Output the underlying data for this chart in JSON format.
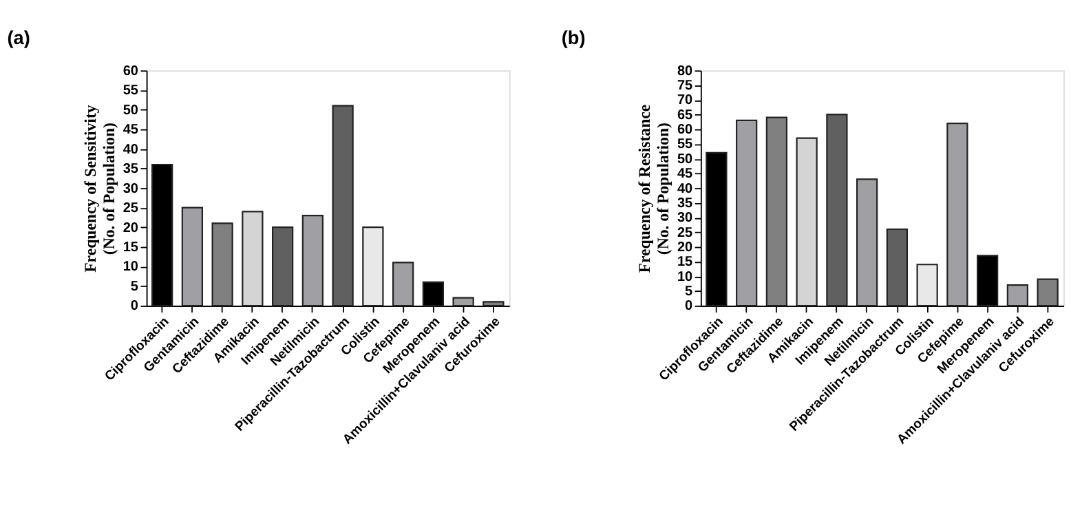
{
  "chart_data": [
    {
      "type": "bar",
      "title": "(a)",
      "ylabel": "Frequency of Sensitivity\n(No. of Population)",
      "categories": [
        "Ciprofloxacin",
        "Gentamicin",
        "Ceftazidime",
        "Amikacin",
        "Imipenem",
        "Netilmicin",
        "Piperacillin-Tazobactrum",
        "Colistin",
        "Cefepime",
        "Meropenem",
        "Amoxicillin+Clavulaniv acid",
        "Cefuroxime"
      ],
      "values": [
        36,
        25,
        21,
        24,
        20,
        23,
        51,
        20,
        11,
        6,
        2,
        1
      ],
      "colors": [
        "#000000",
        "#a0a0a4",
        "#808080",
        "#d4d4d4",
        "#606060",
        "#a0a0a4",
        "#606060",
        "#e8e8e8",
        "#a0a0a4",
        "#000000",
        "#a0a0a4",
        "#808080"
      ],
      "ylim": [
        0,
        60
      ],
      "yticks": [
        0,
        5,
        10,
        15,
        20,
        25,
        30,
        35,
        40,
        45,
        50,
        55,
        60
      ],
      "grid": false,
      "legend": false
    },
    {
      "type": "bar",
      "title": "(b)",
      "ylabel": "Frequency of Resistance\n(No. of Population)",
      "categories": [
        "Ciprofloxacin",
        "Gentamicin",
        "Ceftazidime",
        "Amikacin",
        "Imipenem",
        "Netilmicin",
        "Piperacillin-Tazobactrum",
        "Colistin",
        "Cefepime",
        "Meropenem",
        "Amoxicillin+Clavulaniv acid",
        "Cefuroxime"
      ],
      "values": [
        52,
        63,
        64,
        57,
        65,
        43,
        26,
        14,
        62,
        17,
        7,
        9
      ],
      "colors": [
        "#000000",
        "#a0a0a4",
        "#808080",
        "#d4d4d4",
        "#606060",
        "#a0a0a4",
        "#606060",
        "#e8e8e8",
        "#a0a0a4",
        "#000000",
        "#a0a0a4",
        "#808080"
      ],
      "ylim": [
        0,
        80
      ],
      "yticks": [
        0,
        5,
        10,
        15,
        20,
        25,
        30,
        35,
        40,
        45,
        50,
        55,
        60,
        65,
        70,
        75,
        80
      ],
      "grid": false,
      "legend": false
    }
  ]
}
